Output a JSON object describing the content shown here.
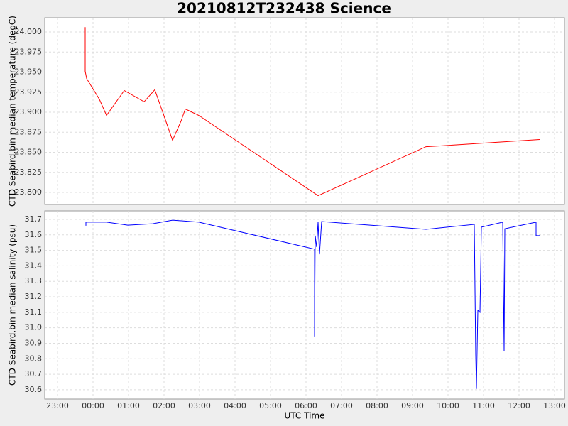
{
  "chart_data": [
    {
      "type": "line",
      "title": "20210812T232438 Science",
      "y_label": "CTD Seabird.bin median temperature (degC)",
      "ylim": [
        23.785,
        24.0177
      ],
      "yticks": [
        {
          "value": 23.8,
          "label": "23.800"
        },
        {
          "value": 23.825,
          "label": "23.825"
        },
        {
          "value": 23.85,
          "label": "23.850"
        },
        {
          "value": 23.875,
          "label": "23.875"
        },
        {
          "value": 23.9,
          "label": "23.900"
        },
        {
          "value": 23.925,
          "label": "23.925"
        },
        {
          "value": 23.95,
          "label": "23.950"
        },
        {
          "value": 23.975,
          "label": "23.975"
        },
        {
          "value": 24.0,
          "label": "24.000"
        }
      ],
      "grid": true,
      "series": [
        {
          "color": "#ff0000",
          "x": [
            -0.22,
            -0.22,
            -0.18,
            0.0,
            0.18,
            0.38,
            0.88,
            1.44,
            1.74,
            1.98,
            2.24,
            2.48,
            2.6,
            2.98,
            6.34,
            9.38,
            9.78,
            12.58
          ],
          "values": [
            24.006,
            23.951,
            23.942,
            23.929,
            23.916,
            23.896,
            23.927,
            23.913,
            23.928,
            23.898,
            23.865,
            23.889,
            23.904,
            23.896,
            23.796,
            23.857,
            23.858,
            23.866
          ]
        }
      ]
    },
    {
      "type": "line",
      "x_label": "UTC Time",
      "y_label": "CTD Seabird.bin median salinity (psu)",
      "xlim": [
        -1.36,
        13.28
      ],
      "xticks": [
        {
          "value": -1,
          "label": "23:00"
        },
        {
          "value": 0,
          "label": "00:00"
        },
        {
          "value": 1,
          "label": "01:00"
        },
        {
          "value": 2,
          "label": "02:00"
        },
        {
          "value": 3,
          "label": "03:00"
        },
        {
          "value": 4,
          "label": "04:00"
        },
        {
          "value": 5,
          "label": "05:00"
        },
        {
          "value": 6,
          "label": "06:00"
        },
        {
          "value": 7,
          "label": "07:00"
        },
        {
          "value": 8,
          "label": "08:00"
        },
        {
          "value": 9,
          "label": "09:00"
        },
        {
          "value": 10,
          "label": "10:00"
        },
        {
          "value": 11,
          "label": "11:00"
        },
        {
          "value": 12,
          "label": "12:00"
        },
        {
          "value": 13,
          "label": "13:00"
        }
      ],
      "ylim": [
        30.54,
        31.755
      ],
      "yticks": [
        30.6,
        30.7,
        30.8,
        30.9,
        {
          "value": 31.0,
          "label": "31.0"
        },
        31.1,
        31.2,
        31.3,
        31.4,
        31.5,
        31.6,
        31.7
      ],
      "grid": true,
      "series": [
        {
          "color": "#0000ff",
          "x": [
            -0.2,
            -0.2,
            0.38,
            0.98,
            1.68,
            2.24,
            2.98,
            6.24,
            6.24,
            6.26,
            6.3,
            6.34,
            6.38,
            6.44,
            9.38,
            10.74,
            10.78,
            10.8,
            10.84,
            10.9,
            10.94,
            11.54,
            11.58,
            11.6,
            12.48,
            12.48,
            12.58
          ],
          "values": [
            31.659,
            31.682,
            31.682,
            31.663,
            31.672,
            31.695,
            31.682,
            31.508,
            30.944,
            31.595,
            31.521,
            31.682,
            31.475,
            31.686,
            31.636,
            31.668,
            30.825,
            30.605,
            31.113,
            31.1,
            31.65,
            31.682,
            30.848,
            31.64,
            31.682,
            31.595,
            31.595
          ]
        }
      ]
    }
  ]
}
